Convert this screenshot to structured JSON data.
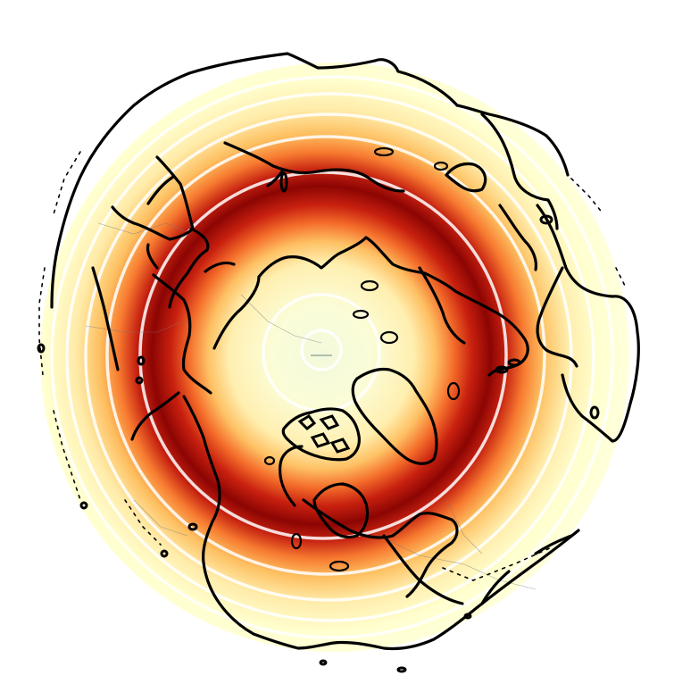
{
  "map": {
    "projection": "polar-azimuthal-north",
    "colormap": "YlOrRd",
    "field": "annular-band",
    "colors": {
      "background": "#ffffff",
      "center": "#f4fadc",
      "low": "#ffffd4",
      "mid_low": "#fee391",
      "mid": "#fe9929",
      "high": "#d7301f",
      "peak": "#7f0000",
      "coastline": "#000000",
      "gridline": "#ffffff"
    },
    "features": [
      "coastlines",
      "country-borders",
      "lakes",
      "islands",
      "latitude-circles"
    ]
  }
}
